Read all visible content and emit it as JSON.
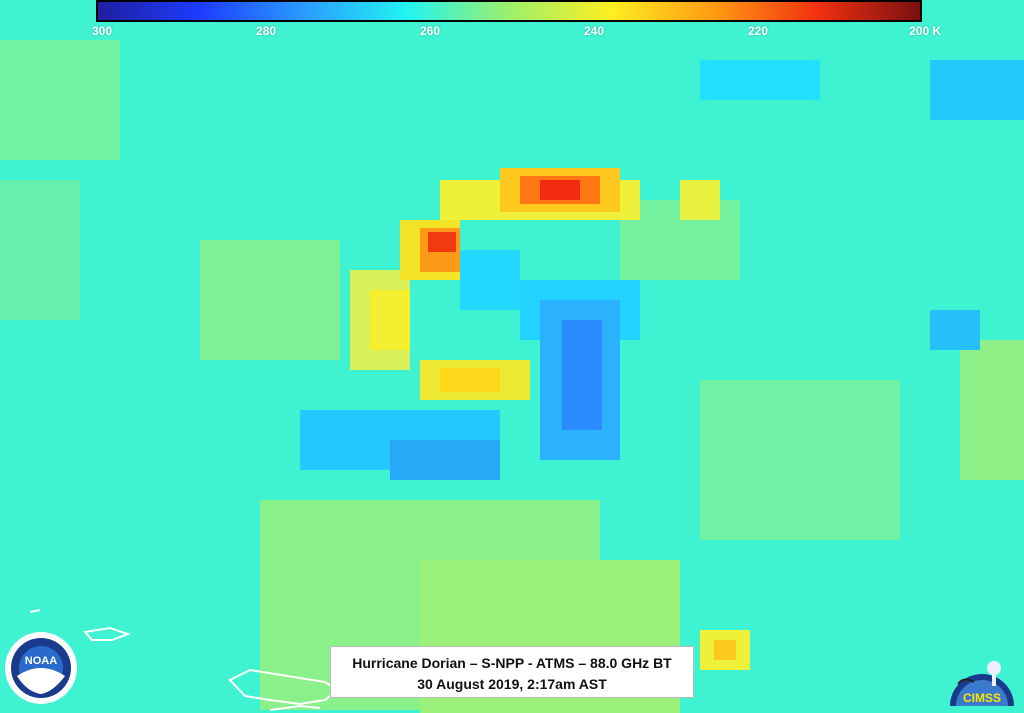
{
  "colorbar": {
    "gradient": [
      "#1f1fa0",
      "#1e3cff",
      "#2a9cff",
      "#22f2f2",
      "#9cf06a",
      "#ffee22",
      "#ff9a12",
      "#f23010",
      "#7a1010"
    ],
    "ticks": [
      {
        "label": "300",
        "value": 300
      },
      {
        "label": "280",
        "value": 280
      },
      {
        "label": "260",
        "value": 260
      },
      {
        "label": "240",
        "value": 240
      },
      {
        "label": "220",
        "value": 220
      },
      {
        "label": "200 K",
        "value": 200
      }
    ]
  },
  "caption": {
    "line1": "Hurricane Dorian – S-NPP - ATMS – 88.0 GHz BT",
    "line2": "30 August 2019, 2:17am AST"
  },
  "logos": {
    "noaa_text": "NOAA",
    "cimss_text": "CIMSS"
  }
}
